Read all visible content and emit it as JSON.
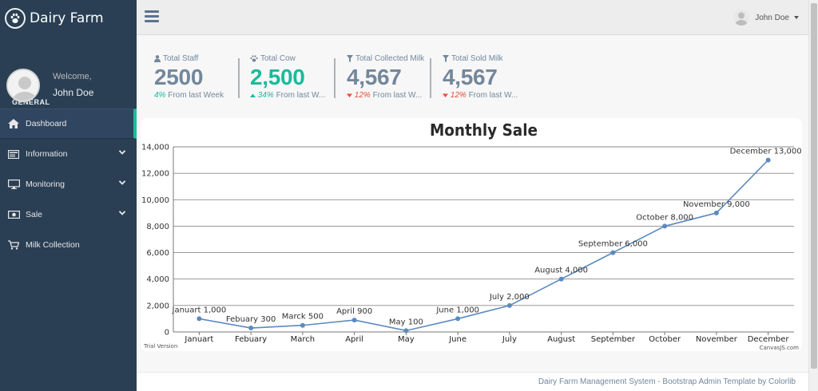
{
  "brand": {
    "title": "Dairy Farm"
  },
  "profile": {
    "welcome": "Welcome,",
    "name": "John Doe"
  },
  "sidebar": {
    "section_title": "GENERAL",
    "items": [
      {
        "label": "Dashboard",
        "icon": "home-icon",
        "active": true
      },
      {
        "label": "Information",
        "icon": "id-card-icon",
        "has_submenu": true
      },
      {
        "label": "Monitoring",
        "icon": "desktop-icon",
        "has_submenu": true
      },
      {
        "label": "Sale",
        "icon": "money-icon",
        "has_submenu": true
      },
      {
        "label": "Milk Collection",
        "icon": "cart-icon"
      }
    ]
  },
  "topbar": {
    "user_name": "John Doe"
  },
  "stats": [
    {
      "label": "Total Staff",
      "icon": "user-icon",
      "value": "2500",
      "change": "4%",
      "change_text": "From last Week",
      "trend": "none"
    },
    {
      "label": "Total Cow",
      "icon": "paw-icon",
      "value": "2,500",
      "change": "34%",
      "change_text": "From last W...",
      "trend": "up"
    },
    {
      "label": "Total Collected Milk",
      "icon": "filter-icon",
      "value": "4,567",
      "change": "12%",
      "change_text": "From last W...",
      "trend": "down"
    },
    {
      "label": "Total Sold Milk",
      "icon": "filter-icon",
      "value": "4,567",
      "change": "12%",
      "change_text": "From last W...",
      "trend": "down"
    }
  ],
  "chart_data": {
    "type": "line",
    "title": "Monthly Sale",
    "categories": [
      "Januart",
      "Febuary",
      "March",
      "April",
      "May",
      "June",
      "July",
      "August",
      "September",
      "October",
      "November",
      "December"
    ],
    "values": [
      1000,
      300,
      500,
      900,
      100,
      1000,
      2000,
      4000,
      6000,
      8000,
      9000,
      13000
    ],
    "data_labels": [
      "Januart 1,000",
      "Febuary 300",
      "Marck 500",
      "April 900",
      "May 100",
      "June 1,000",
      "July 2,000",
      "August 4,000",
      "September 6,000",
      "October 8,000",
      "November 9,000",
      "December 13,000"
    ],
    "ylim": [
      0,
      14000
    ],
    "yticks": [
      "0",
      "2,000",
      "4,000",
      "6,000",
      "8,000",
      "10,000",
      "12,000",
      "14,000"
    ],
    "grid": true,
    "line_color": "#5b8abf",
    "watermark_left": "Trial Version",
    "watermark_right": "CanvasJS.com"
  },
  "footer": {
    "text": "Dairy Farm Management System - Bootstrap Admin Template by Colorlib"
  },
  "colors": {
    "sidebar": "#2a3f54",
    "accent": "#1abb9c",
    "negative": "#e74c3c",
    "muted": "#73879c"
  }
}
